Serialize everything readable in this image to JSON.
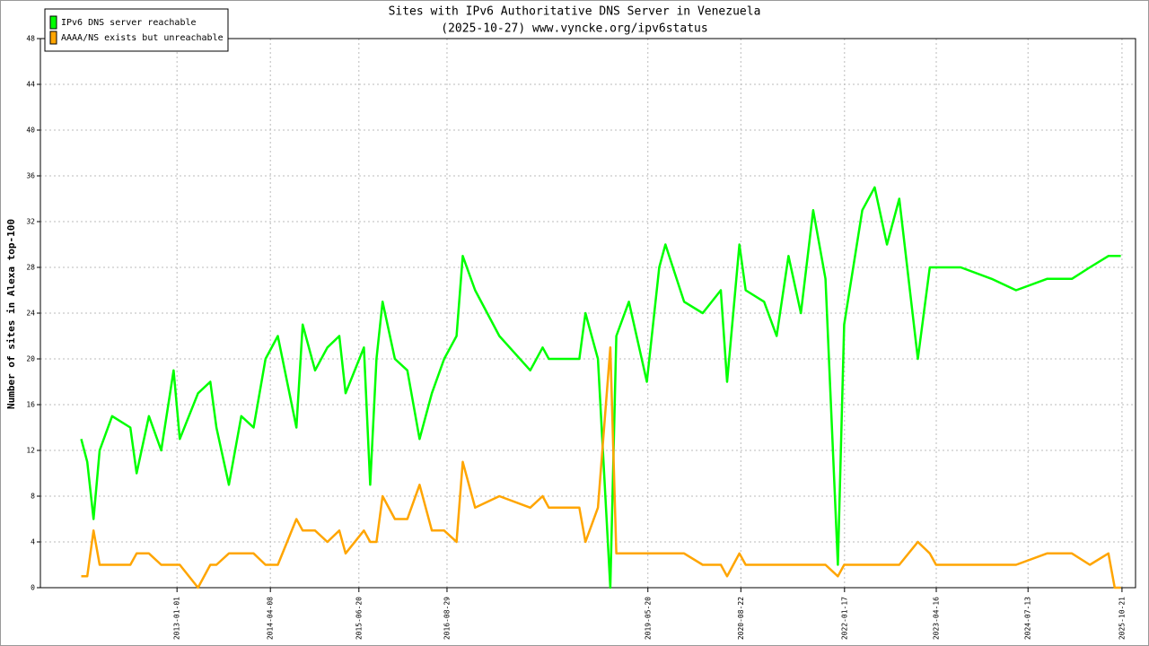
{
  "chart_data": {
    "type": "line",
    "title": "Sites with IPv6 Authoritative DNS Server in Venezuela",
    "subtitle": "(2025-10-27) www.vyncke.org/ipv6status",
    "y_label": "Number of sites in Alexa top-100",
    "x": [
      "2011-09",
      "2011-10",
      "2011-11",
      "2011-12",
      "2012-02",
      "2012-05",
      "2012-06",
      "2012-08",
      "2012-10",
      "2012-12",
      "2013-01",
      "2013-04",
      "2013-06",
      "2013-07",
      "2013-09",
      "2013-11",
      "2014-01",
      "2014-03",
      "2014-05",
      "2014-08",
      "2014-09",
      "2014-11",
      "2015-01",
      "2015-03",
      "2015-04",
      "2015-07",
      "2015-08",
      "2015-09",
      "2015-10",
      "2015-12",
      "2016-02",
      "2016-04",
      "2016-06",
      "2016-08",
      "2016-10",
      "2016-11",
      "2017-01",
      "2017-05",
      "2017-10",
      "2017-12",
      "2018-01",
      "2018-06",
      "2018-07",
      "2018-09",
      "2018-11",
      "2018-12",
      "2019-02",
      "2019-05",
      "2019-07",
      "2019-08",
      "2019-11",
      "2020-02",
      "2020-05",
      "2020-06",
      "2020-08",
      "2020-09",
      "2020-12",
      "2021-02",
      "2021-04",
      "2021-06",
      "2021-08",
      "2021-10",
      "2021-12",
      "2022-01",
      "2022-04",
      "2022-06",
      "2022-08",
      "2022-10",
      "2023-01",
      "2023-03",
      "2023-04",
      "2023-08",
      "2024-01",
      "2024-05",
      "2024-10",
      "2025-02",
      "2025-05",
      "2025-08",
      "2025-09",
      "2025-10"
    ],
    "series": [
      {
        "name": "IPv6 DNS server reachable",
        "color": "#00ff00",
        "values": [
          13,
          11,
          6,
          12,
          15,
          14,
          10,
          15,
          12,
          19,
          13,
          17,
          18,
          14,
          9,
          15,
          14,
          20,
          22,
          14,
          23,
          19,
          21,
          22,
          17,
          21,
          9,
          20,
          25,
          20,
          19,
          13,
          17,
          20,
          22,
          29,
          26,
          22,
          19,
          21,
          20,
          20,
          24,
          20,
          0,
          22,
          25,
          18,
          28,
          30,
          25,
          24,
          26,
          18,
          30,
          26,
          25,
          22,
          29,
          24,
          33,
          27,
          2,
          23,
          33,
          35,
          30,
          34,
          20,
          28,
          28,
          28,
          27,
          26,
          27,
          27,
          28,
          29,
          29,
          29
        ]
      },
      {
        "name": "AAAA/NS exists but unreachable",
        "color": "#ffa500",
        "values": [
          1,
          1,
          5,
          2,
          2,
          2,
          3,
          3,
          2,
          2,
          2,
          0,
          2,
          2,
          3,
          3,
          3,
          2,
          2,
          6,
          5,
          5,
          4,
          5,
          3,
          5,
          4,
          4,
          8,
          6,
          6,
          9,
          5,
          5,
          4,
          11,
          7,
          8,
          7,
          8,
          7,
          7,
          4,
          7,
          21,
          3,
          3,
          3,
          3,
          3,
          3,
          2,
          2,
          1,
          3,
          2,
          2,
          2,
          2,
          2,
          2,
          2,
          1,
          2,
          2,
          2,
          2,
          2,
          4,
          3,
          2,
          2,
          2,
          2,
          3,
          3,
          2,
          3,
          0,
          0
        ]
      }
    ],
    "xlim": [
      "2011-02-25",
      "2025-12-27"
    ],
    "xticks": [
      "2013-01-01",
      "2014-04-08",
      "2015-06-20",
      "2016-08-29",
      "2019-05-20",
      "2020-08-22",
      "2022-01-17",
      "2023-04-16",
      "2024-07-13",
      "2025-10-21"
    ],
    "ylim": [
      0,
      48
    ],
    "yticks": [
      0,
      4,
      8,
      12,
      16,
      20,
      24,
      28,
      32,
      36,
      40,
      44,
      48
    ],
    "grid": true,
    "legend": "top-left"
  }
}
